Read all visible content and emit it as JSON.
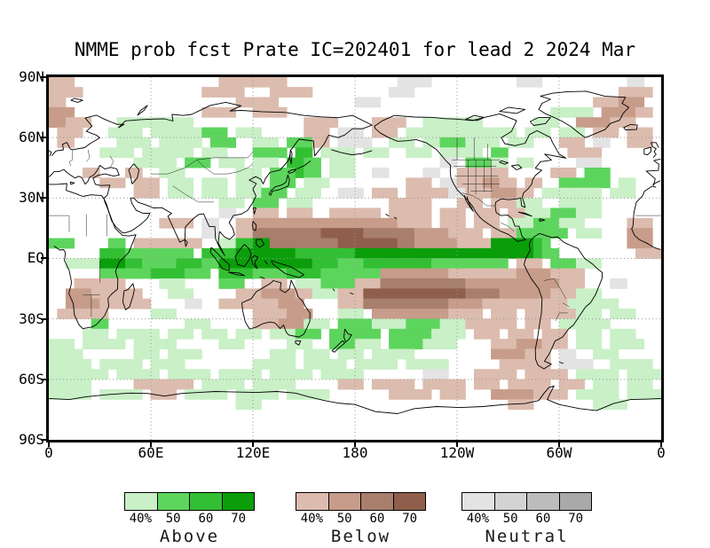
{
  "title": "NMME prob fcst Prate IC=202401 for lead 2 2024 Mar",
  "axes": {
    "lat_labels": [
      "90N",
      "60N",
      "30N",
      "EQ",
      "30S",
      "60S",
      "90S"
    ],
    "lon_labels": [
      "0",
      "60E",
      "120E",
      "180",
      "120W",
      "60W",
      "0"
    ]
  },
  "legend": {
    "percent_labels": [
      "40%",
      "50",
      "60",
      "70"
    ],
    "groups": [
      {
        "name": "Above",
        "colors": [
          "#c9f0c7",
          "#5dd55d",
          "#33bf33",
          "#0a9e0a"
        ]
      },
      {
        "name": "Below",
        "colors": [
          "#dcbcae",
          "#c79c8a",
          "#a87e6d",
          "#8f5f4b"
        ]
      },
      {
        "name": "Neutral",
        "colors": [
          "#e3e3e3",
          "#d3d3d3",
          "#bcbcbc",
          "#a9a9a9"
        ]
      }
    ]
  },
  "chart_data": {
    "type": "heatmap",
    "title": "NMME prob fcst Prate IC=202401 for lead 2 2024 Mar",
    "projection": "equirectangular",
    "lon_range": [
      0,
      360
    ],
    "lat_range": [
      -90,
      90
    ],
    "lat_ticks": [
      90,
      60,
      30,
      0,
      -30,
      -60,
      -90
    ],
    "lon_ticks": [
      0,
      60,
      120,
      180,
      240,
      300,
      360
    ],
    "grid_lats": [
      60,
      30,
      0,
      -30,
      -60
    ],
    "grid_lons": [
      60,
      120,
      180,
      240,
      300
    ],
    "grid_color": "#999999",
    "coastline_color": "#000000",
    "cell_deg": 5,
    "classes": {
      "a": "#c9f0c7",
      "b": "#5dd55d",
      "c": "#33bf33",
      "d": "#0a9e0a",
      "e": "#dcbcae",
      "f": "#c79c8a",
      "g": "#a87e6d",
      "h": "#8f5f4b",
      "x": "#e3e3e3",
      "y": "#d3d3d3",
      "z": "#bcbcbc",
      "w": "#a9a9a9"
    },
    "class_meaning": {
      "a": "above 40%",
      "b": "above 50%",
      "c": "above 60%",
      "d": "above 70%",
      "e": "below 40%",
      "f": "below 50%",
      "g": "below 60%",
      "h": "below 70%",
      "x": "neutral 40%",
      "y": "neutral 50%",
      "z": "neutral 60%",
      "w": "neutral 70%"
    },
    "grid_rows": [
      "eee.................eeeeeeee.............xxxx..........xxx..........xx..",
      "eeee..............eeeee...eeeee.........xxx........................eeee.",
      "ee....................eeeee.........xxx.........................eeefff..",
      "fff...............eeee..eeee...............................aaaaa.ffffee.",
      "ffeee...aaaaaaaaa.............eeee....eeee..aaaaaaa......aaa..ffffeee...",
      ".eee...aaaa.aaaaaabbb.aaa.....eee.xxx.eee.aaaaaaaaaaaaa.aaa.aaa.eee.eee.",
      ".ee.....aaaa.aaaaa.bbb..aaa.bbbee.xxxx..aaa.aabbbaaaa.aaa...eee.xx..eee.",
      "......aaaa.aaaaaa.aaa...bbbb.cc.aaaa.aaa..aaa.aaaaa.bb.......eeee.......",
      "..........aaaaa.bbb.aaa.aaa.ccbb.aaa..........xx.bbbaa.aa.....xxx.......",
      "....ee...ee..aaa......aaa.bbbcbb.aaa..xx....xx..eeeeee.....eee.bbb......",
      "......eee.eee.aaa.aaa.aaa.bbb.aaa.........eee.xxeeeffee.ee..bbbbbb.aa...",
      "..........eee.aaa.aaa.aaabbb.aaa..xxx.eee.eeeeexxeeefffee.aaaaaaa.aaa...",
      "....................aaa.bbb.aaa.........eeeee...eee.eeeaaa..aaaaa.......",
      "....................xx..eee.eee..eeeeee.eeeee.eee.eee.eeaaabbbaaa.......",
      ".............eeee.xx..eefffffffffffffffffeeee.eee.eee.aaabbbaaa.....eee.",
      "..................xx..eegggggggghhhhhggggggffffeeee.eeebbbbbb.aaa...fff.",
      "bbb....bb.eeeeeeee..aaccddgggggggghhhhhhhggfffffeeeedddddcb.........fff.",
      "......cccbbbbbbbb.ccccdddddddcccccccdddddddddddddddddddddcbb.........eee",
      "..aaaadddccbbbbcccbbdddddddddddcccbbbccccccccbbbbbbbbb.eee.bbbaaa.......",
      "......bbbbbbccccbbb.ccccbbbbccccbbbbbbbffffffffeeeeeeeeffffeeee.........",
      "...eeeeee....aaa....bbb..eee.aaabbbbeeeggggggggggfffffffffffeee...xx....",
      "..fffeeeeee...aaa.....eeeffffeeaaaeeehhhhhhhhhhhhggggffffffeeeaaa.......",
      "..ffffeeeeee....xx..eeeeeeefff....eeeggggggggggffffeeeeeeeeeeaaaaaa.....",
      ".eeeeee.....aaa.........eeeefff...aaa.fffffffffeeee.eee.eeeeeeaaa.aaa...",
      ".....bb.........aaa.....eeefffaaa.bbbbaaaabbbbaaaeeeeee.eee.aaaaaa......",
      "....aaa.aaaaa.aaa.aaa.aaa.aaabbb.bbbbbb.bbbbbaaaa.eee.eee.eee.aaa.aaa...",
      "aaa.aaaaa.aaaaa.....aaa.....aaa..bbbaaa.bbbbaaaa....eeefffeee.aaa.aaaa..",
      "aaaa......aaa.aaaa........aaa.aaa.aaa.aaaaa.........ffffeee.xx..aaa.....",
      "aaaaa.aaaaa.aaaa........aaaaa.aaaaa.aaaaa.aaaaa......eeeeee.xxxx..aaaaa.",
      "aaaaaaa.aaaaa.aaaaa.aaaaa.aaaaa.aaaaa.......xxx...eeeee.eeeee.aaaaa.aaaa",
      "aaaaa.....eeeeeee.aaaaa.aaaaa.....eee.eeeee.eeeee.eee.eeeee.eee.aaa.aaa.",
      "aaaaa.aaaaa.eee.aaaaa.aaaaa.aaaaa.......eeeee.eee...fffffeeee.aaaaa.aaaa",
      "......................aaa.............................eee.......aaaa....",
      "........................................................................",
      "........................................................................",
      "........................................................................"
    ]
  }
}
